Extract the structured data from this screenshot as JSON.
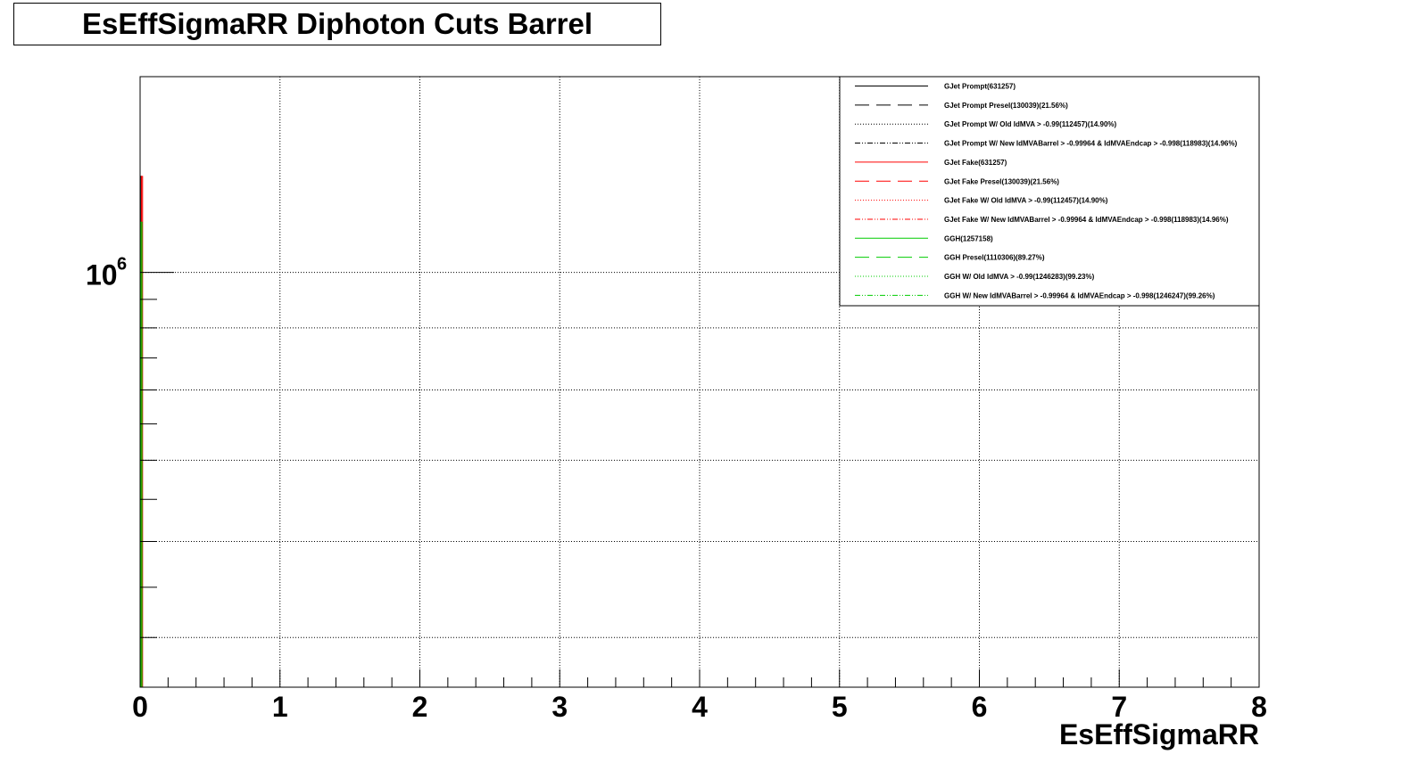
{
  "chart_data": {
    "type": "line",
    "title": "EsEffSigmaRR Diphoton Cuts Barrel",
    "xlabel": "EsEffSigmaRR",
    "ylabel": "",
    "xlim": [
      0,
      8
    ],
    "x_ticks": [
      "0",
      "1",
      "2",
      "3",
      "4",
      "5",
      "6",
      "7",
      "8"
    ],
    "y_scale": "log",
    "y_tick_label": {
      "base": "10",
      "exponent": "6"
    },
    "grid": true,
    "legend_position": "top-right",
    "series": [
      {
        "name": "GJet Prompt(631257)",
        "color": "#000000",
        "style": "solid",
        "peak_x": 0.0,
        "peak_y": 1200000
      },
      {
        "name": "GJet Prompt Presel(130039)(21.56%)",
        "color": "#000000",
        "style": "dashed"
      },
      {
        "name": "GJet Prompt W/ Old IdMVA > -0.99(112457)(14.90%)",
        "color": "#000000",
        "style": "dotted"
      },
      {
        "name": "GJet Prompt W/ New IdMVABarrel > -0.99964 & IdMVAEndcap > -0.998(118983)(14.96%)",
        "color": "#000000",
        "style": "dashdot"
      },
      {
        "name": "GJet Fake(631257)",
        "color": "#ff0000",
        "style": "solid",
        "peak_x": 0.0,
        "peak_y": 1200000
      },
      {
        "name": "GJet Fake Presel(130039)(21.56%)",
        "color": "#ff0000",
        "style": "dashed"
      },
      {
        "name": "GJet Fake W/ Old IdMVA > -0.99(112457)(14.90%)",
        "color": "#ff0000",
        "style": "dotted"
      },
      {
        "name": "GJet Fake W/ New IdMVABarrel > -0.99964 & IdMVAEndcap > -0.998(118983)(14.96%)",
        "color": "#ff0000",
        "style": "dashdot"
      },
      {
        "name": "GGH(1257158)",
        "color": "#00cc00",
        "style": "solid",
        "peak_x": 0.0,
        "peak_y": 1100000
      },
      {
        "name": "GGH Presel(1110306)(89.27%)",
        "color": "#00cc00",
        "style": "dashed"
      },
      {
        "name": "GGH W/ Old IdMVA > -0.99(1246283)(99.23%)",
        "color": "#00cc00",
        "style": "dotted"
      },
      {
        "name": "GGH W/ New IdMVABarrel > -0.99964 & IdMVAEndcap > -0.998(1246247)(99.26%)",
        "color": "#00cc00",
        "style": "dashdot"
      }
    ]
  }
}
